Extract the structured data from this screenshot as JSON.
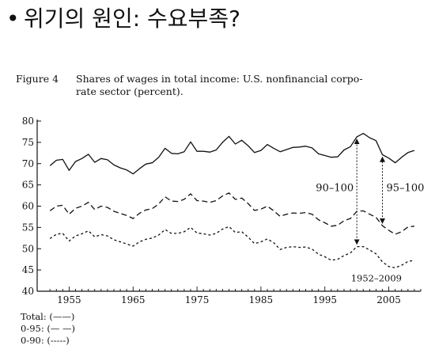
{
  "slide": {
    "bullet": "•",
    "title": "위기의 원인: 수요부족?"
  },
  "figure": {
    "label": "Figure 4",
    "caption_line1": "Shares of wages in total income: U.S. nonfinancial corpo-",
    "caption_line2": "rate sector (percent)."
  },
  "chart_data": {
    "type": "line",
    "title": "Shares of wages in total income: U.S. nonfinancial corporate sector (percent).",
    "xlabel": "",
    "ylabel": "",
    "xlim": [
      1950,
      2010
    ],
    "ylim": [
      40,
      80
    ],
    "xticks": [
      1955,
      1965,
      1975,
      1985,
      1995,
      2005
    ],
    "yticks": [
      40,
      45,
      50,
      55,
      60,
      65,
      70,
      75,
      80
    ],
    "grid": false,
    "series": [
      {
        "name": "Total",
        "style": "solid",
        "x": [
          1952,
          1953,
          1954,
          1955,
          1956,
          1957,
          1958,
          1959,
          1960,
          1961,
          1962,
          1963,
          1964,
          1965,
          1966,
          1967,
          1968,
          1969,
          1970,
          1971,
          1972,
          1973,
          1974,
          1975,
          1976,
          1977,
          1978,
          1979,
          1980,
          1981,
          1982,
          1983,
          1984,
          1985,
          1986,
          1987,
          1988,
          1989,
          1990,
          1991,
          1992,
          1993,
          1994,
          1995,
          1996,
          1997,
          1998,
          1999,
          2000,
          2001,
          2002,
          2003,
          2004,
          2005,
          2006,
          2007,
          2008,
          2009
        ],
        "values": [
          69.5,
          70.8,
          71.0,
          68.4,
          70.5,
          71.2,
          72.2,
          70.3,
          71.2,
          70.9,
          69.7,
          69.0,
          68.5,
          67.6,
          68.8,
          69.9,
          70.2,
          71.5,
          73.6,
          72.4,
          72.3,
          72.8,
          75.1,
          72.9,
          72.9,
          72.7,
          73.2,
          75.0,
          76.4,
          74.6,
          75.5,
          74.2,
          72.6,
          73.1,
          74.5,
          73.6,
          72.8,
          73.3,
          73.8,
          73.9,
          74.1,
          73.7,
          72.3,
          71.9,
          71.5,
          71.6,
          73.2,
          74.0,
          76.3,
          77.1,
          76.1,
          75.4,
          72.1,
          71.3,
          70.2,
          71.5,
          72.6,
          73.1
        ]
      },
      {
        "name": "0-95",
        "style": "dashed",
        "x": [
          1952,
          1953,
          1954,
          1955,
          1956,
          1957,
          1958,
          1959,
          1960,
          1961,
          1962,
          1963,
          1964,
          1965,
          1966,
          1967,
          1968,
          1969,
          1970,
          1971,
          1972,
          1973,
          1974,
          1975,
          1976,
          1977,
          1978,
          1979,
          1980,
          1981,
          1982,
          1983,
          1984,
          1985,
          1986,
          1987,
          1988,
          1989,
          1990,
          1991,
          1992,
          1993,
          1994,
          1995,
          1996,
          1997,
          1998,
          1999,
          2000,
          2001,
          2002,
          2003,
          2004,
          2005,
          2006,
          2007,
          2008,
          2009
        ],
        "values": [
          58.9,
          60.0,
          60.2,
          58.1,
          59.5,
          60.0,
          60.9,
          59.2,
          60.0,
          59.7,
          58.8,
          58.3,
          57.8,
          57.1,
          58.3,
          59.1,
          59.4,
          60.5,
          62.2,
          61.2,
          61.1,
          61.6,
          62.9,
          61.3,
          61.2,
          60.9,
          61.3,
          62.4,
          63.1,
          61.6,
          61.9,
          60.6,
          59.0,
          59.3,
          60.0,
          58.9,
          57.6,
          58.1,
          58.4,
          58.3,
          58.5,
          58.1,
          56.8,
          56.1,
          55.3,
          55.5,
          56.6,
          57.1,
          58.8,
          58.9,
          58.1,
          57.4,
          55.4,
          54.3,
          53.4,
          54.0,
          55.1,
          55.3
        ]
      },
      {
        "name": "0-90",
        "style": "dotted",
        "x": [
          1952,
          1953,
          1954,
          1955,
          1956,
          1957,
          1958,
          1959,
          1960,
          1961,
          1962,
          1963,
          1964,
          1965,
          1966,
          1967,
          1968,
          1969,
          1970,
          1971,
          1972,
          1973,
          1974,
          1975,
          1976,
          1977,
          1978,
          1979,
          1980,
          1981,
          1982,
          1983,
          1984,
          1985,
          1986,
          1987,
          1988,
          1989,
          1990,
          1991,
          1992,
          1993,
          1994,
          1995,
          1996,
          1997,
          1998,
          1999,
          2000,
          2001,
          2002,
          2003,
          2004,
          2005,
          2006,
          2007,
          2008,
          2009
        ],
        "values": [
          52.4,
          53.4,
          53.6,
          51.8,
          53.0,
          53.5,
          54.2,
          52.8,
          53.3,
          53.0,
          52.1,
          51.6,
          51.1,
          50.6,
          51.6,
          52.2,
          52.5,
          53.2,
          54.5,
          53.6,
          53.6,
          54.0,
          55.0,
          53.7,
          53.5,
          53.2,
          53.6,
          54.6,
          55.2,
          53.8,
          54.0,
          52.7,
          51.2,
          51.6,
          52.3,
          51.4,
          49.8,
          50.3,
          50.5,
          50.3,
          50.4,
          49.9,
          48.7,
          48.1,
          47.3,
          47.5,
          48.4,
          49.0,
          50.5,
          50.5,
          49.7,
          48.8,
          46.9,
          45.8,
          45.5,
          46.1,
          47.0,
          47.3
        ]
      }
    ],
    "annotations": [
      {
        "text": "90–100",
        "from_year": 2000,
        "from_value": 50.5,
        "to_value": 76.3,
        "arrows": "both"
      },
      {
        "text": "95–100",
        "from_year": 2004,
        "from_value": 55.4,
        "to_value": 72.1,
        "arrows": "both"
      },
      {
        "text": "1952–2009"
      }
    ],
    "legend": {
      "placement": "bottom-left",
      "entries": [
        {
          "label": "Total:",
          "key": "(——)"
        },
        {
          "label": "0-95:",
          "key": "(— —)"
        },
        {
          "label": "0-90:",
          "key": "(-----)"
        }
      ]
    }
  }
}
